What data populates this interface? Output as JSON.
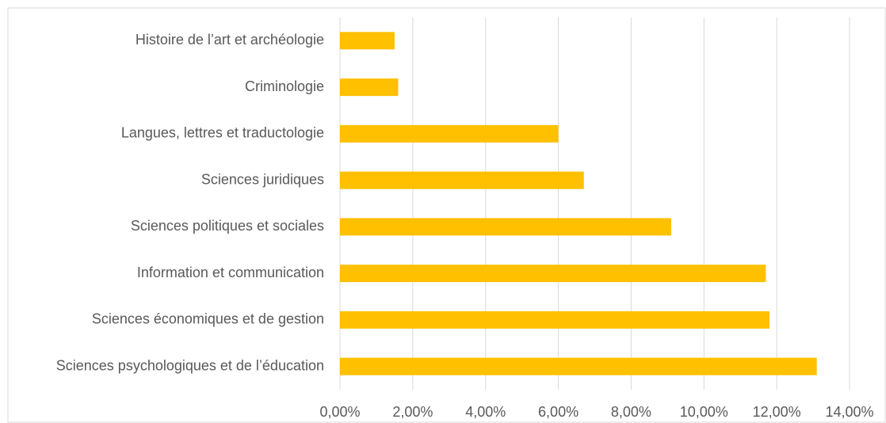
{
  "chart_data": {
    "type": "bar",
    "orientation": "horizontal",
    "categories": [
      "Histoire de l’art et archéologie",
      "Criminologie",
      "Langues, lettres et traductologie",
      "Sciences juridiques",
      "Sciences politiques et sociales",
      "Information et communication",
      "Sciences économiques et de gestion",
      "Sciences psychologiques et de l’éducation"
    ],
    "values": [
      1.5,
      1.6,
      6.0,
      6.7,
      9.1,
      11.7,
      11.8,
      13.1
    ],
    "color": "#ffc000",
    "xlim": [
      0,
      14
    ],
    "xticks": [
      {
        "value": 0,
        "label": "0,00%"
      },
      {
        "value": 2,
        "label": "2,00%"
      },
      {
        "value": 4,
        "label": "4,00%"
      },
      {
        "value": 6,
        "label": "6,00%"
      },
      {
        "value": 8,
        "label": "8,00%"
      },
      {
        "value": 10,
        "label": "10,00%"
      },
      {
        "value": 12,
        "label": "12,00%"
      },
      {
        "value": 14,
        "label": "14,00%"
      }
    ],
    "grid": true
  }
}
